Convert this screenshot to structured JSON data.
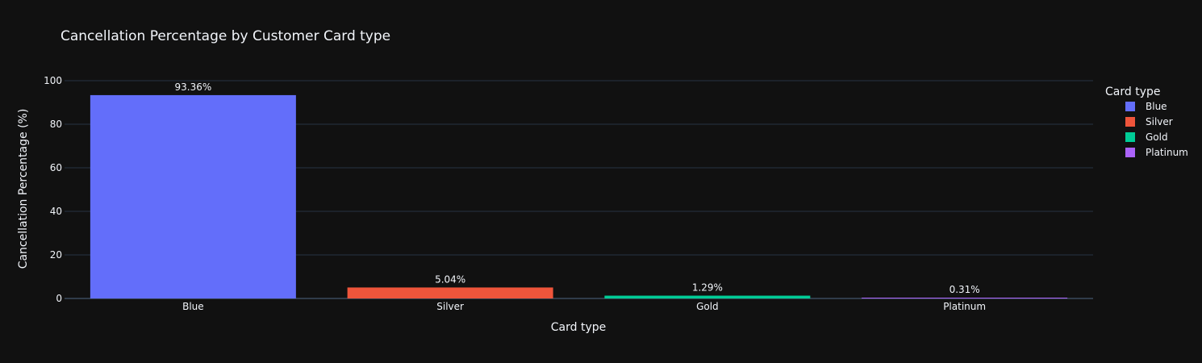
{
  "chart_data": {
    "type": "bar",
    "title": "Cancellation Percentage by Customer Card type",
    "xlabel": "Card type",
    "ylabel": "Cancellation Percentage (%)",
    "categories": [
      "Blue",
      "Silver",
      "Gold",
      "Platinum"
    ],
    "values": [
      93.36,
      5.04,
      1.29,
      0.31
    ],
    "data_labels": [
      "93.36%",
      "5.04%",
      "1.29%",
      "0.31%"
    ],
    "colors": [
      "#636efa",
      "#ef553b",
      "#00cc96",
      "#ab63fa"
    ],
    "ylim": [
      0,
      100
    ],
    "yticks": [
      "0",
      "20",
      "40",
      "60",
      "80",
      "100"
    ],
    "grid": true,
    "legend": {
      "title": "Card type",
      "position": "right",
      "entries": [
        "Blue",
        "Silver",
        "Gold",
        "Platinum"
      ]
    },
    "theme": {
      "background": "#111111",
      "text": "#f2f5fa",
      "grid": "#283442"
    }
  }
}
